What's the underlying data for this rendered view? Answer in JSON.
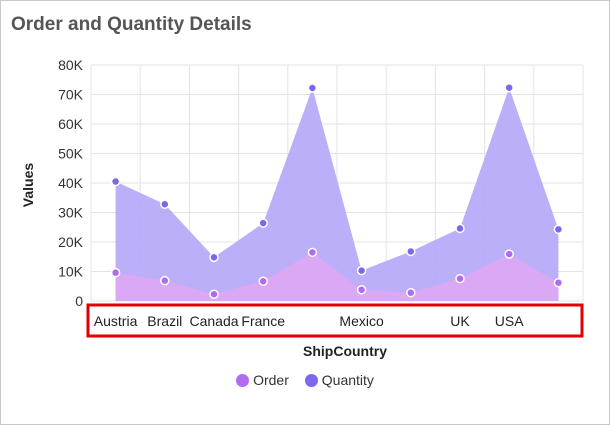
{
  "header": {
    "title": "Order and Quantity Details"
  },
  "chart_data": {
    "type": "area",
    "title": "Order and Quantity Details",
    "xlabel": "ShipCountry",
    "ylabel": "Values",
    "categories": [
      "Austria",
      "Brazil",
      "Canada",
      "France",
      "",
      "Mexico",
      "",
      "UK",
      "USA",
      ""
    ],
    "y_ticks": [
      "0",
      "10K",
      "20K",
      "30K",
      "40K",
      "50K",
      "60K",
      "70K",
      "80K"
    ],
    "ylim": [
      0,
      80000
    ],
    "grid": true,
    "legend": "bottom",
    "series": [
      {
        "name": "Quantity",
        "color": "#7b68ee",
        "values": [
          40500,
          32800,
          14800,
          26400,
          72200,
          10300,
          16800,
          24600,
          72300,
          24300
        ]
      },
      {
        "name": "Order",
        "color": "#c39bf5",
        "values": [
          9600,
          6900,
          2300,
          6700,
          16500,
          3800,
          2800,
          7600,
          15900,
          6200
        ]
      }
    ],
    "highlight": "x-axis-labels"
  }
}
